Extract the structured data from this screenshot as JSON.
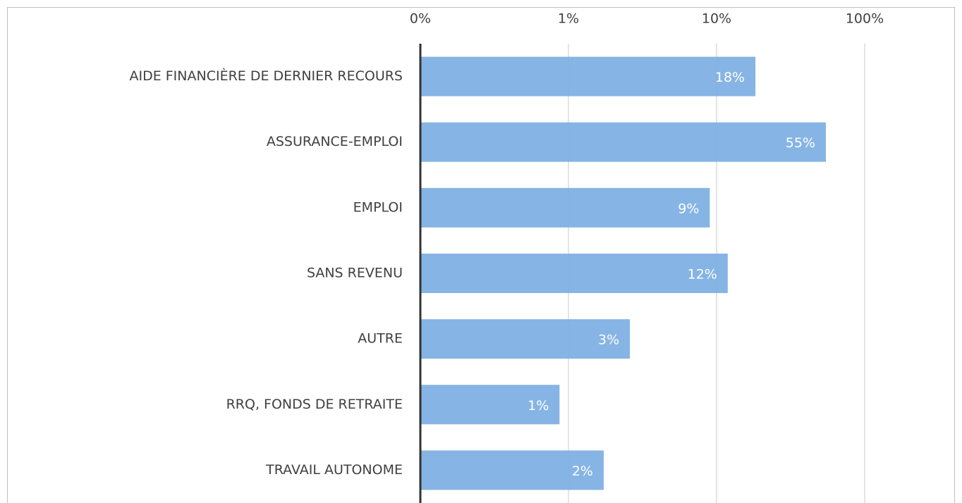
{
  "chart_data": {
    "type": "bar",
    "orientation": "horizontal",
    "log_scale": true,
    "grid": true,
    "color": "#7fb0e3",
    "categories": [
      "AIDE FINANCIÈRE DE DERNIER RECOURS",
      "ASSURANCE-EMPLOI",
      "EMPLOI",
      "SANS REVENU",
      "AUTRE",
      "RRQ, FONDS DE RETRAITE",
      "TRAVAIL AUTONOME"
    ],
    "values": [
      18.3,
      54.7,
      9,
      11.9,
      2.6,
      0.87,
      1.73
    ],
    "value_labels": [
      "18%",
      "55%",
      "9%",
      "12%",
      "3%",
      "1%",
      "2%"
    ],
    "xlim": [
      0.1,
      100
    ],
    "xticks": [
      {
        "value": 0.1,
        "label": "0%"
      },
      {
        "value": 1,
        "label": "1%"
      },
      {
        "value": 10,
        "label": "10%"
      },
      {
        "value": 100,
        "label": "100%"
      }
    ]
  }
}
